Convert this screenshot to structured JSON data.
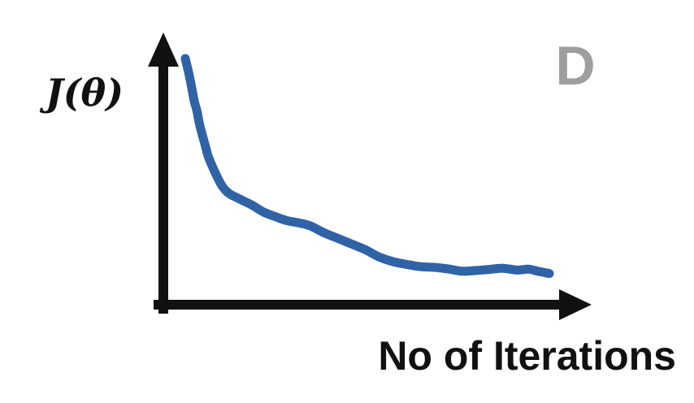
{
  "chart_data": {
    "type": "line",
    "panel_label": "D",
    "xlabel": "No of Iterations",
    "ylabel": "J(θ)",
    "xlim": [
      0,
      100
    ],
    "ylim": [
      0,
      100
    ],
    "grid": false,
    "legend": "none",
    "axis_color": "#111111",
    "series": [
      {
        "color": "#2f63a6",
        "x": [
          0,
          0.6,
          1.3,
          1.9,
          2.5,
          3.2,
          3.8,
          4.4,
          5.1,
          5.7,
          6.3,
          7.6,
          8.9,
          10.1,
          11.4,
          12.7,
          14.6,
          16.5,
          18.4,
          21.5,
          24.7,
          27.8,
          31.0,
          34.2,
          38.0,
          41.8,
          45.6,
          49.4,
          53.2,
          57.0,
          60.8,
          64.6,
          68.4,
          72.2,
          76.0,
          79.7,
          83.5,
          87.3,
          91.1,
          94.3,
          96.8,
          100
        ],
        "y": [
          100,
          96,
          91,
          86,
          81,
          77,
          72,
          68,
          64,
          60.5,
          57,
          52,
          47.5,
          44,
          41.5,
          40,
          38.5,
          37,
          35.5,
          32.5,
          30.5,
          28.8,
          27.8,
          26.5,
          23.5,
          21,
          18.5,
          16,
          12.8,
          10.7,
          9.5,
          8.5,
          8.2,
          7.5,
          6.5,
          6.8,
          7.3,
          7.8,
          7.0,
          7.4,
          6.5,
          5.5
        ]
      }
    ]
  }
}
